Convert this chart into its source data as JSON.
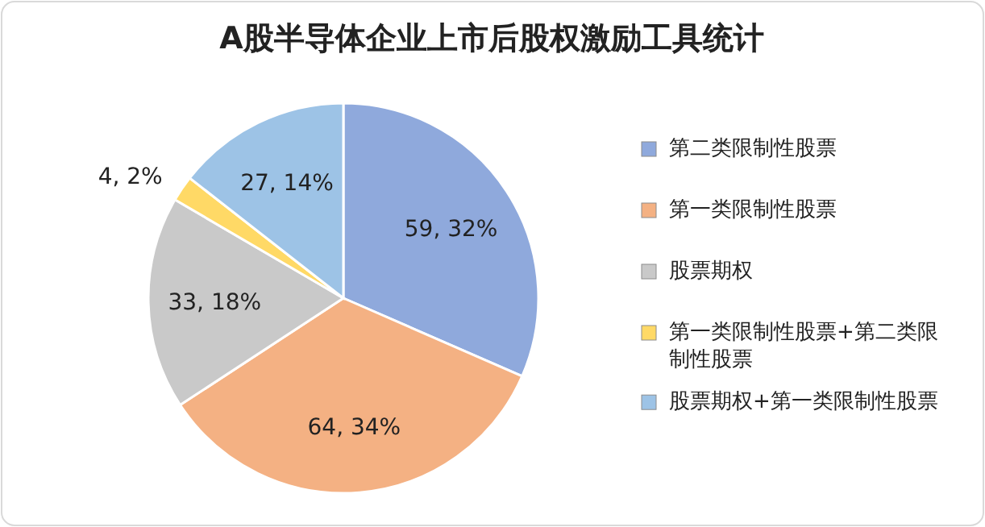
{
  "chart_data": {
    "type": "pie",
    "title": "A股半导体企业上市后股权激励工具统计",
    "categories": [
      "第二类限制性股票",
      "第一类限制性股票",
      "股票期权",
      "第一类限制性股票+第二类限制性股票",
      "股票期权+第一类限制性股票"
    ],
    "values": [
      59,
      64,
      33,
      4,
      27
    ],
    "colors": [
      "#8fa9dc",
      "#f4b183",
      "#c9c9c9",
      "#ffd966",
      "#9dc3e6"
    ],
    "value_labels": [
      "59, 32%",
      "64, 34%",
      "33, 18%",
      "4, 2%",
      "27, 14%"
    ],
    "legend": "right"
  }
}
